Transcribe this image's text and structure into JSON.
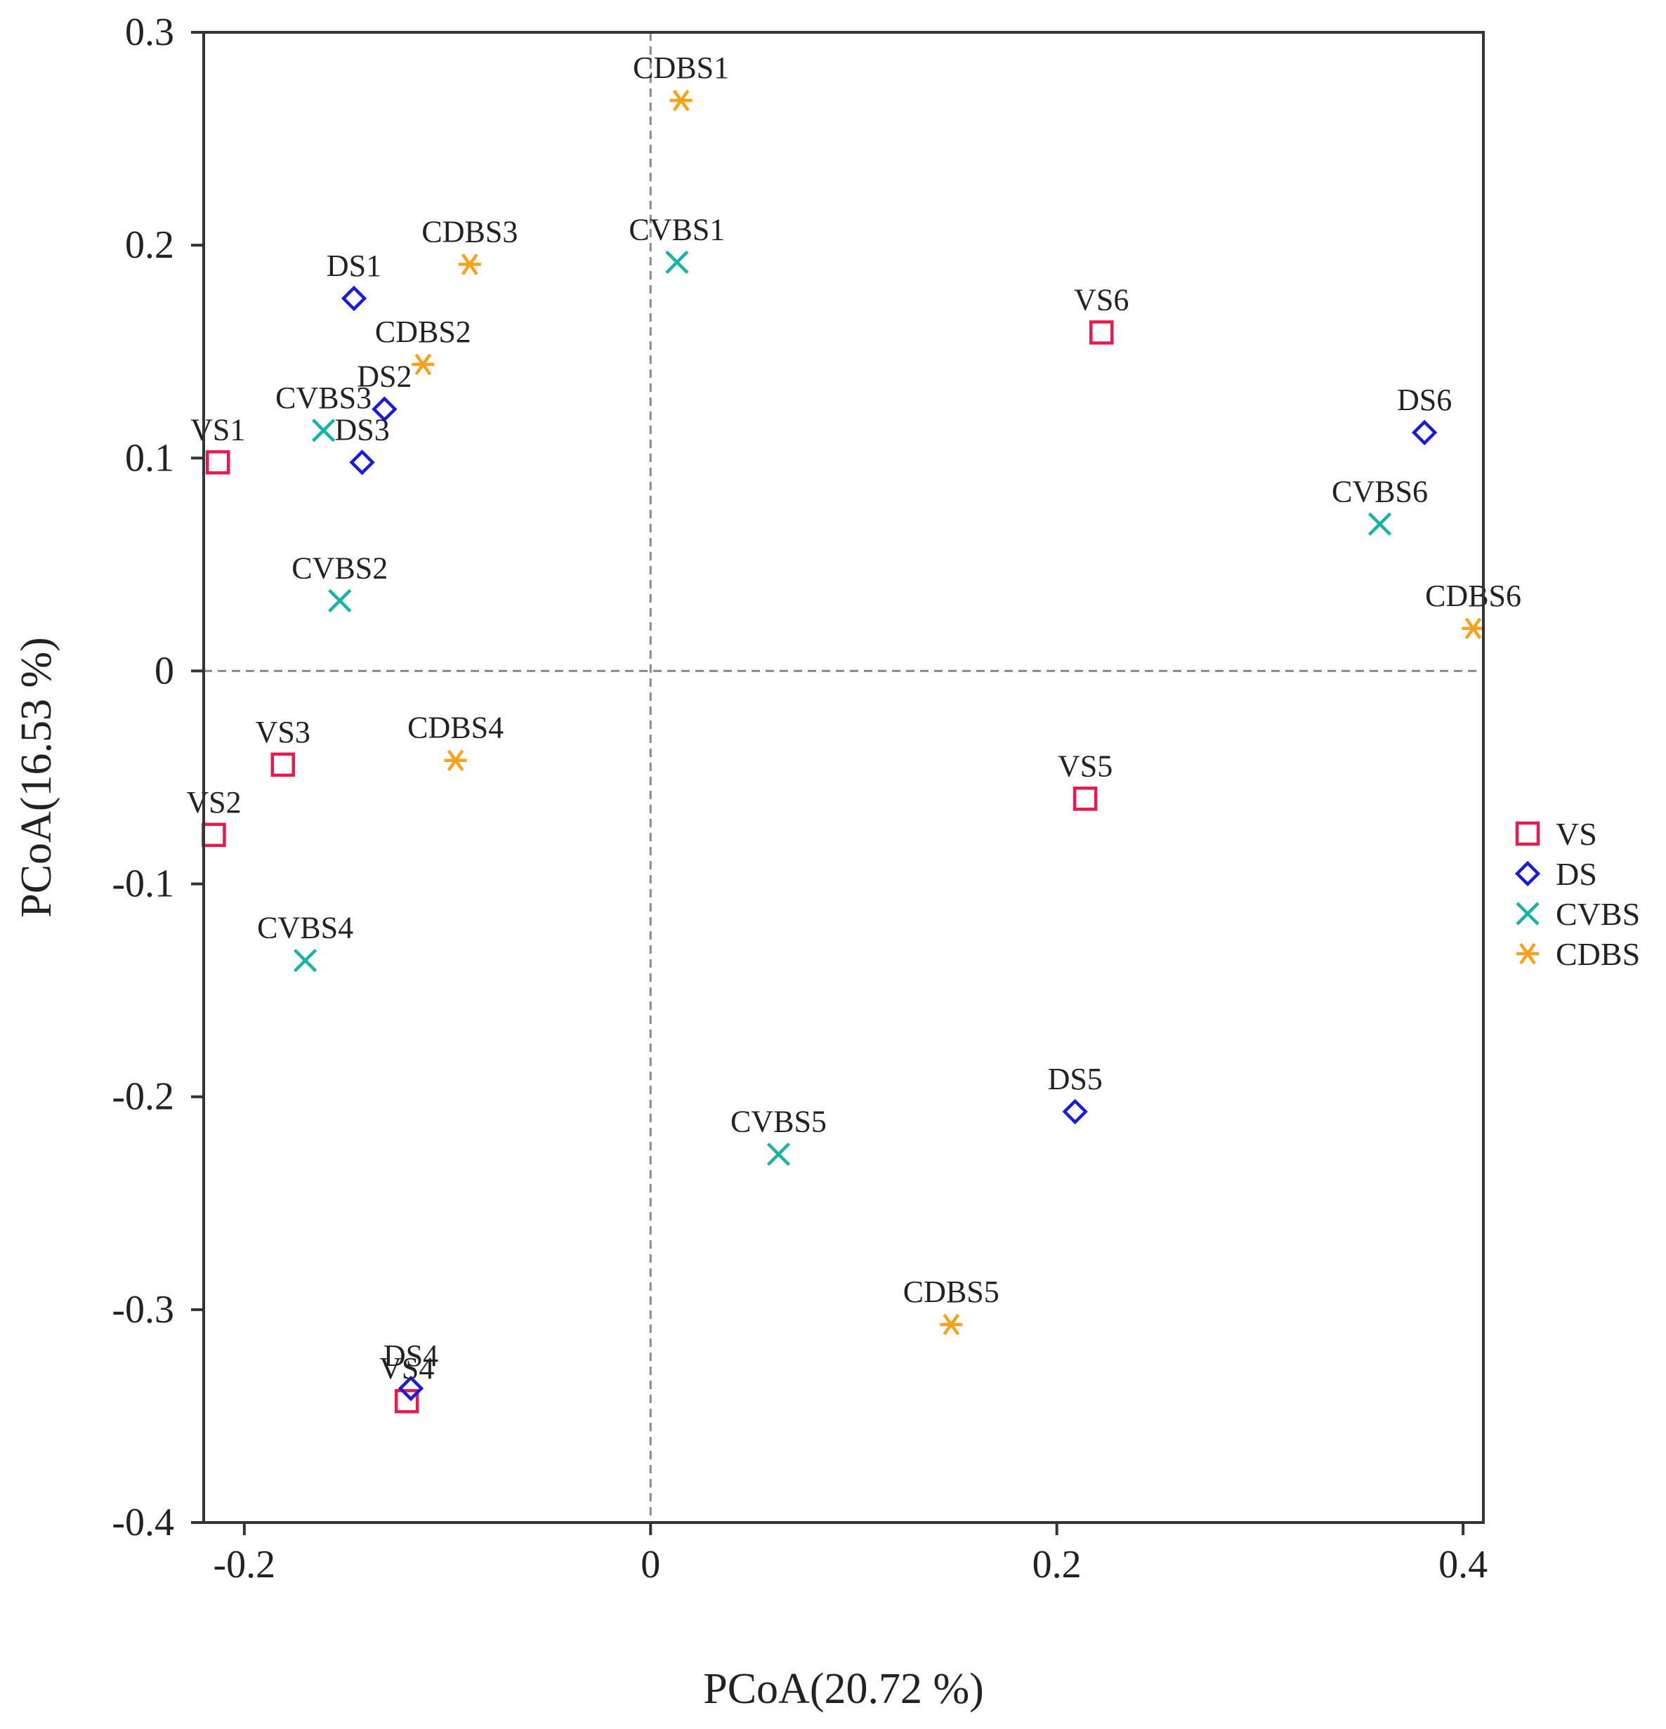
{
  "chart_data": {
    "type": "scatter",
    "title": "",
    "xlabel": "PCoA(20.72 %)",
    "ylabel": "PCoA(16.53 %)",
    "xlim": [
      -0.22,
      0.41
    ],
    "ylim": [
      -0.4,
      0.3
    ],
    "xticks": [
      -0.2,
      0,
      0.2,
      0.4
    ],
    "xtick_labels": [
      "-0.2",
      "0",
      "0.2",
      "0.4"
    ],
    "yticks": [
      -0.4,
      -0.3,
      -0.2,
      -0.1,
      0,
      0.1,
      0.2,
      0.3
    ],
    "ytick_labels": [
      "-0.4",
      "-0.3",
      "-0.2",
      "-0.1",
      "0",
      "0.1",
      "0.2",
      "0.3"
    ],
    "reference_lines": {
      "x": 0,
      "y": 0,
      "style": "dashed"
    },
    "legend_position": "right-middle",
    "series": [
      {
        "name": "VS",
        "marker": "square",
        "color": "#e8194d",
        "points": [
          {
            "label": "VS1",
            "x": -0.213,
            "y": 0.098
          },
          {
            "label": "VS2",
            "x": -0.215,
            "y": -0.077
          },
          {
            "label": "VS3",
            "x": -0.181,
            "y": -0.044
          },
          {
            "label": "VS4",
            "x": -0.12,
            "y": -0.343
          },
          {
            "label": "VS5",
            "x": 0.214,
            "y": -0.06
          },
          {
            "label": "VS6",
            "x": 0.222,
            "y": 0.159
          }
        ]
      },
      {
        "name": "DS",
        "marker": "diamond",
        "color": "#1a1adb",
        "points": [
          {
            "label": "DS1",
            "x": -0.146,
            "y": 0.175
          },
          {
            "label": "DS2",
            "x": -0.131,
            "y": 0.123
          },
          {
            "label": "DS3",
            "x": -0.142,
            "y": 0.098
          },
          {
            "label": "DS4",
            "x": -0.118,
            "y": -0.337
          },
          {
            "label": "DS5",
            "x": 0.209,
            "y": -0.207
          },
          {
            "label": "DS6",
            "x": 0.381,
            "y": 0.112
          }
        ]
      },
      {
        "name": "CVBS",
        "marker": "x",
        "color": "#17b3a6",
        "points": [
          {
            "label": "CVBS1",
            "x": 0.013,
            "y": 0.192
          },
          {
            "label": "CVBS2",
            "x": -0.153,
            "y": 0.033
          },
          {
            "label": "CVBS3",
            "x": -0.161,
            "y": 0.113
          },
          {
            "label": "CVBS4",
            "x": -0.17,
            "y": -0.136
          },
          {
            "label": "CVBS5",
            "x": 0.063,
            "y": -0.227
          },
          {
            "label": "CVBS6",
            "x": 0.359,
            "y": 0.069
          }
        ]
      },
      {
        "name": "CDBS",
        "marker": "asterisk",
        "color": "#f7a21b",
        "points": [
          {
            "label": "CDBS1",
            "x": 0.015,
            "y": 0.268
          },
          {
            "label": "CDBS2",
            "x": -0.112,
            "y": 0.144
          },
          {
            "label": "CDBS3",
            "x": -0.089,
            "y": 0.191
          },
          {
            "label": "CDBS4",
            "x": -0.096,
            "y": -0.042
          },
          {
            "label": "CDBS5",
            "x": 0.148,
            "y": -0.307
          },
          {
            "label": "CDBS6",
            "x": 0.405,
            "y": 0.02
          }
        ]
      }
    ]
  }
}
